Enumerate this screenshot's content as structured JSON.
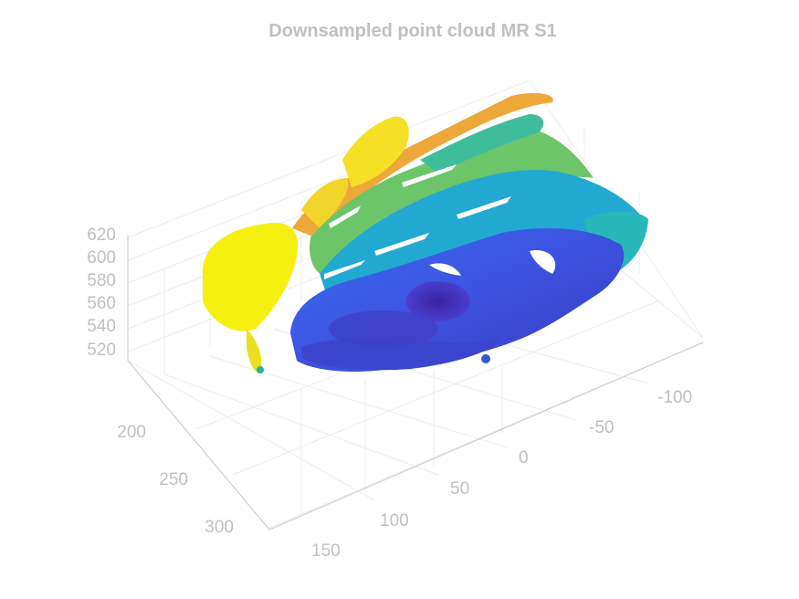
{
  "chart_data": {
    "type": "scatter",
    "title": "Downsampled point cloud MR S1",
    "xlabel": "",
    "ylabel": "",
    "zlabel": "",
    "x_ticks": [
      "-100",
      "-50",
      "0",
      "50",
      "100",
      "150"
    ],
    "y_ticks": [
      "200",
      "250",
      "300"
    ],
    "z_ticks": [
      "620",
      "600",
      "580",
      "560",
      "540",
      "520"
    ],
    "xlim": [
      -120,
      170
    ],
    "ylim": [
      175,
      320
    ],
    "zlim": [
      505,
      625
    ],
    "grid": true,
    "colormap": "parula",
    "colors": {
      "low": "#3e26a8",
      "mid_low": "#2f6ef5",
      "mid": "#17b1c9",
      "mid_high": "#80c95a",
      "high_orange": "#f2a93a",
      "high": "#f9fb15"
    }
  }
}
